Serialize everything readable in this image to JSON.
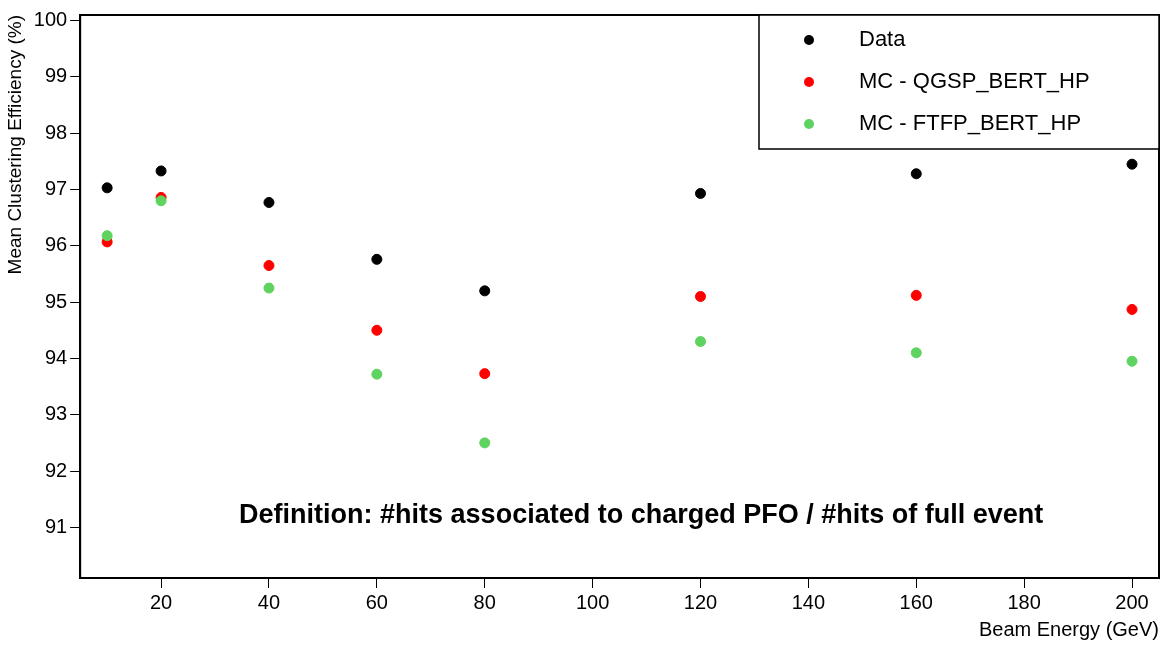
{
  "chart_data": {
    "type": "scatter",
    "xlabel": "Beam Energy (GeV)",
    "ylabel": "Mean Clustering Efficiency (%)",
    "x": [
      10,
      20,
      40,
      60,
      80,
      120,
      160,
      200
    ],
    "series": [
      {
        "name": "Data",
        "color": "#000000",
        "values": [
          97.03,
          97.33,
          96.77,
          95.76,
          95.2,
          96.93,
          97.28,
          97.45
        ]
      },
      {
        "name": "MC - QGSP_BERT_HP",
        "color": "#ff0000",
        "values": [
          96.07,
          96.86,
          95.65,
          94.5,
          93.73,
          95.1,
          95.12,
          94.87
        ]
      },
      {
        "name": "MC - FTFP_BERT_HP",
        "color": "#5fd35f",
        "values": [
          96.18,
          96.8,
          95.25,
          93.72,
          92.5,
          94.3,
          94.1,
          93.95
        ]
      }
    ],
    "xlim": [
      5,
      205
    ],
    "xticks": [
      20,
      40,
      60,
      80,
      100,
      120,
      140,
      160,
      180,
      200
    ],
    "ylim": [
      90.1,
      100.1
    ],
    "yticks": [
      91,
      92,
      93,
      94,
      95,
      96,
      97,
      98,
      99,
      100
    ],
    "annotations": [
      "Definition: #hits associated to charged PFO / #hits of full event"
    ],
    "legend": "top right",
    "grid": false,
    "marker": "circle"
  }
}
